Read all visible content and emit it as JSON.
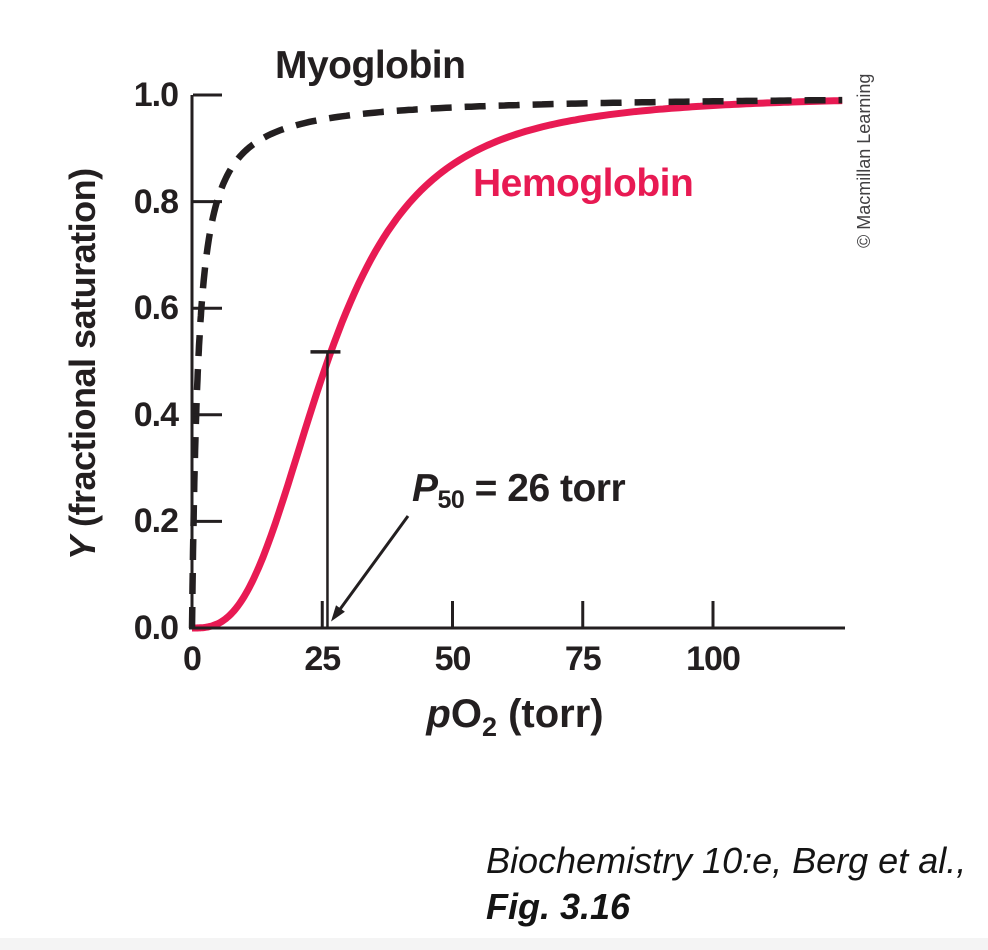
{
  "figure": {
    "colors": {
      "ink": "#231f20",
      "accent": "#e81a53",
      "credit": "#414042"
    },
    "curve_labels": {
      "myoglobin": "Myoglobin",
      "hemoglobin": "Hemoglobin"
    },
    "p50_annotation": {
      "symbol": "P",
      "subscript": "50",
      "rest": " = 26 torr"
    },
    "x_axis": {
      "title_p": "p",
      "title_o": "O",
      "title_sub": "2",
      "title_unit": " (torr)",
      "tick_labels": [
        "0",
        "25",
        "50",
        "75",
        "100"
      ]
    },
    "y_axis": {
      "title_symbol": "Y",
      "title_rest": " (fractional saturation)",
      "tick_labels": [
        "1.0",
        "0.8",
        "0.6",
        "0.4",
        "0.2",
        "0.0"
      ]
    },
    "credit": "© Macmillan Learning",
    "caption": {
      "line1": "Biochemistry 10:e, Berg et al.,",
      "line2": "Fig. 3.16"
    }
  },
  "chart_data": {
    "type": "line",
    "title": "Oxygen-binding curves of myoglobin and hemoglobin",
    "xlabel": "pO2 (torr)",
    "ylabel": "Y (fractional saturation)",
    "xlim": [
      0,
      125
    ],
    "ylim": [
      0,
      1.0
    ],
    "x_ticks": [
      0,
      25,
      50,
      75,
      100
    ],
    "y_ticks": [
      1.0,
      0.8,
      0.6,
      0.4,
      0.2,
      0
    ],
    "grid": false,
    "legend": "inline-labels",
    "series": [
      {
        "name": "Myoglobin",
        "style": "dashed",
        "color": "#231f20",
        "model": {
          "type": "hyperbolic",
          "p50": 1.2
        },
        "points": [
          [
            0,
            0
          ],
          [
            1,
            0.45
          ],
          [
            2,
            0.63
          ],
          [
            5,
            0.81
          ],
          [
            10,
            0.89
          ],
          [
            25,
            0.95
          ],
          [
            50,
            0.98
          ],
          [
            100,
            0.99
          ],
          [
            125,
            0.99
          ]
        ]
      },
      {
        "name": "Hemoglobin",
        "style": "solid",
        "color": "#e81a53",
        "model": {
          "type": "hill",
          "n": 2.9,
          "p50": 26
        },
        "points": [
          [
            0,
            0
          ],
          [
            10,
            0.06
          ],
          [
            20,
            0.32
          ],
          [
            26,
            0.5
          ],
          [
            30,
            0.6
          ],
          [
            40,
            0.78
          ],
          [
            50,
            0.87
          ],
          [
            75,
            0.96
          ],
          [
            100,
            0.98
          ],
          [
            125,
            0.99
          ]
        ]
      }
    ],
    "p50_marker": {
      "p": 26,
      "y_top": 0.518,
      "label": "P50 = 26 torr"
    }
  }
}
